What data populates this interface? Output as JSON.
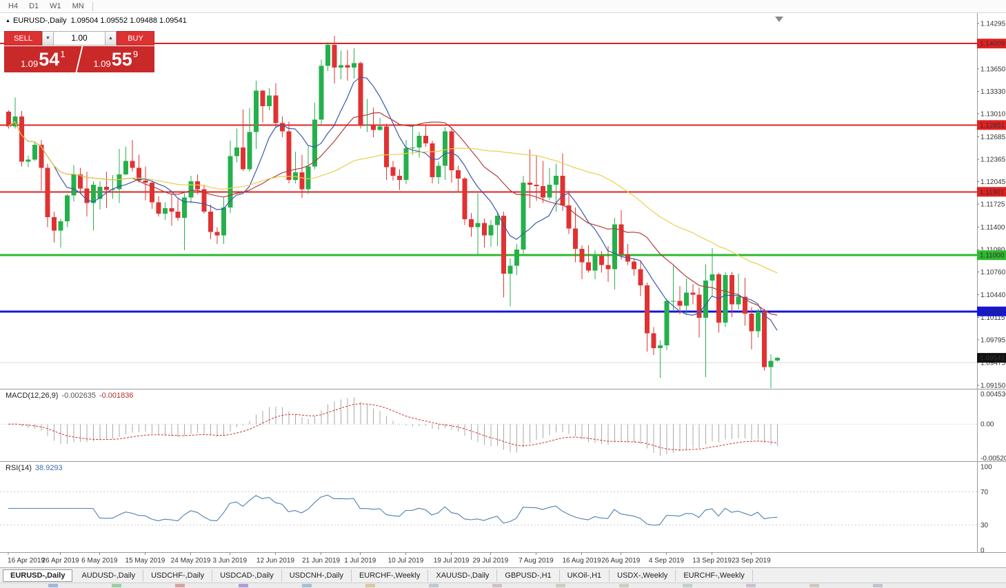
{
  "toolbar": {
    "timeframes": [
      "H4",
      "D1",
      "W1",
      "MN"
    ]
  },
  "header": {
    "marker": "▲",
    "title": "EURUSD-,Daily",
    "ohlc": "1.09504 1.09552 1.09488 1.09541"
  },
  "trade_panel": {
    "sell_label": "SELL",
    "buy_label": "BUY",
    "lot_value": "1.00",
    "icons": {
      "spinner_down": "▼",
      "spinner_up": "▲"
    },
    "bid": {
      "prefix": "1.09",
      "big": "54",
      "sup": "1"
    },
    "ask": {
      "prefix": "1.09",
      "big": "55",
      "sup": "9"
    }
  },
  "indicators": {
    "macd_title": "MACD(12,26,9)",
    "macd_main": "-0.002635",
    "macd_signal": "-0.001836",
    "macd_axis": [
      "0.004536",
      "0.00",
      "-0.00520"
    ],
    "rsi_title": "RSI(14)",
    "rsi_value": "38.9293",
    "rsi_axis": [
      "100",
      "70",
      "30",
      "0"
    ]
  },
  "price_axis": {
    "ticks": [
      "1.14295",
      "1.13650",
      "1.13330",
      "1.13010",
      "1.12685",
      "1.12365",
      "1.12045",
      "1.11725",
      "1.11400",
      "1.11080",
      "1.10760",
      "1.10440",
      "1.10115",
      "1.09795",
      "1.09475",
      "1.09150"
    ],
    "tags": [
      {
        "text": "1.14009",
        "price": 1.14009,
        "color": "#e02020"
      },
      {
        "text": "1.12851",
        "price": 1.12851,
        "color": "#e02020"
      },
      {
        "text": "1.11901",
        "price": 1.11901,
        "color": "#e02020"
      },
      {
        "text": "1.11000",
        "price": 1.11,
        "color": "#2eb82e"
      },
      {
        "text": "1.10201",
        "price": 1.10201,
        "color": "#1414dc"
      },
      {
        "text": "1.09541",
        "price": 1.09541,
        "color": "#111111"
      }
    ]
  },
  "date_axis": {
    "labels": [
      [
        0,
        "16 Apr 2019"
      ],
      [
        8,
        "26 Apr 2019"
      ],
      [
        14,
        "6 May 2019"
      ],
      [
        21,
        "15 May 2019"
      ],
      [
        28,
        "24 May 2019"
      ],
      [
        34,
        "3 Jun 2019"
      ],
      [
        41,
        "12 Jun 2019"
      ],
      [
        48,
        "21 Jun 2019"
      ],
      [
        54,
        "1 Jul 2019"
      ],
      [
        61,
        "10 Jul 2019"
      ],
      [
        68,
        "19 Jul 2019"
      ],
      [
        74,
        "29 Jul 2019"
      ],
      [
        81,
        "7 Aug 2019"
      ],
      [
        88,
        "16 Aug 2019"
      ],
      [
        94,
        "26 Aug 2019"
      ],
      [
        101,
        "4 Sep 2019"
      ],
      [
        108,
        "13 Sep 2019"
      ],
      [
        114,
        "23 Sep 2019"
      ]
    ]
  },
  "tabs": [
    "EURUSD-,Daily",
    "AUDUSD-,Daily",
    "USDCHF-,Daily",
    "USDCAD-,Daily",
    "USDCNH-,Daily",
    "EURCHF-,Weekly",
    "XAUUSD-,Daily",
    "GBPUSD-,H1",
    "UKOil-,H1",
    "USDX-,Weekly",
    "EURCHF-,Weekly"
  ],
  "bottom_strip": {
    "cells": [
      "#9db8d8",
      "#9ccf9c",
      "#d8a49c",
      "#b09cd8",
      "#9cc4d8",
      "#d8c89c",
      "#c0c8d0",
      "#d0c0c8",
      "#c8d0c0",
      "#d0ccc0",
      "#c0d0cc",
      "#ccc0d0",
      "#d0c8c0",
      "#c0c4d0"
    ]
  },
  "colors": {
    "bull": "#25b04c",
    "bear": "#e03232",
    "ma_fast": "#3a57a8",
    "ma_mid": "#b23b3b",
    "ma_slow": "#e8cf4a",
    "macd_hist": "#a8a8a8",
    "macd_signal": "#cc3030",
    "rsi_line": "#4d7fae",
    "level_red": "#e02020",
    "level_green": "#2eb82e",
    "level_blue": "#1414dc",
    "current_tag": "#111111"
  },
  "chart_data": {
    "type": "candlestick",
    "title": "EURUSD-,Daily",
    "current_bar": {
      "open": 1.09504,
      "high": 1.09552,
      "low": 1.09488,
      "close": 1.09541
    },
    "ylim": [
      1.0915,
      1.14295
    ],
    "candles": [
      [
        1.1304,
        1.1306,
        1.128,
        1.1283
      ],
      [
        1.1283,
        1.1324,
        1.128,
        1.1297
      ],
      [
        1.1297,
        1.1305,
        1.1226,
        1.1233
      ],
      [
        1.1233,
        1.1242,
        1.1225,
        1.1236
      ],
      [
        1.1236,
        1.1262,
        1.1234,
        1.1257
      ],
      [
        1.1257,
        1.1264,
        1.1192,
        1.1224
      ],
      [
        1.1224,
        1.123,
        1.114,
        1.1154
      ],
      [
        1.1154,
        1.1162,
        1.1118,
        1.1135
      ],
      [
        1.1135,
        1.1152,
        1.1111,
        1.1148
      ],
      [
        1.1148,
        1.1187,
        1.114,
        1.1185
      ],
      [
        1.1185,
        1.1228,
        1.1176,
        1.1215
      ],
      [
        1.1215,
        1.1224,
        1.1187,
        1.1195
      ],
      [
        1.1195,
        1.1219,
        1.1155,
        1.1174
      ],
      [
        1.1174,
        1.1205,
        1.1135,
        1.12
      ],
      [
        1.118,
        1.1205,
        1.1165,
        1.1197
      ],
      [
        1.1197,
        1.1219,
        1.1167,
        1.1193
      ],
      [
        1.1193,
        1.1214,
        1.118,
        1.1194
      ],
      [
        1.1194,
        1.1251,
        1.1174,
        1.1215
      ],
      [
        1.1215,
        1.1254,
        1.1214,
        1.1234
      ],
      [
        1.1234,
        1.1264,
        1.1219,
        1.1224
      ],
      [
        1.1224,
        1.1243,
        1.1203,
        1.1206
      ],
      [
        1.1206,
        1.1226,
        1.1178,
        1.1203
      ],
      [
        1.1203,
        1.1206,
        1.1166,
        1.1175
      ],
      [
        1.1175,
        1.1184,
        1.1155,
        1.1159
      ],
      [
        1.1159,
        1.1175,
        1.115,
        1.1167
      ],
      [
        1.1167,
        1.1188,
        1.1142,
        1.1162
      ],
      [
        1.1162,
        1.118,
        1.1149,
        1.1153
      ],
      [
        1.1153,
        1.1188,
        1.1107,
        1.1182
      ],
      [
        1.1182,
        1.1213,
        1.1174,
        1.1205
      ],
      [
        1.1205,
        1.1215,
        1.1187,
        1.1194
      ],
      [
        1.1194,
        1.12,
        1.1159,
        1.1162
      ],
      [
        1.1162,
        1.1172,
        1.1123,
        1.1133
      ],
      [
        1.1133,
        1.114,
        1.1116,
        1.1128
      ],
      [
        1.1128,
        1.1182,
        1.1116,
        1.1168
      ],
      [
        1.1168,
        1.1263,
        1.116,
        1.1241
      ],
      [
        1.1241,
        1.128,
        1.1232,
        1.1253
      ],
      [
        1.1253,
        1.1307,
        1.122,
        1.1222
      ],
      [
        1.1222,
        1.1309,
        1.1219,
        1.1275
      ],
      [
        1.1275,
        1.1348,
        1.1251,
        1.1334
      ],
      [
        1.1334,
        1.1335,
        1.1289,
        1.1312
      ],
      [
        1.1312,
        1.1338,
        1.1306,
        1.1327
      ],
      [
        1.1327,
        1.1344,
        1.1281,
        1.1288
      ],
      [
        1.1288,
        1.1297,
        1.1268,
        1.1276
      ],
      [
        1.1276,
        1.129,
        1.1202,
        1.1207
      ],
      [
        1.1207,
        1.1247,
        1.1202,
        1.1218
      ],
      [
        1.1218,
        1.1243,
        1.1181,
        1.1194
      ],
      [
        1.1194,
        1.1255,
        1.1187,
        1.1226
      ],
      [
        1.1226,
        1.1317,
        1.1222,
        1.1293
      ],
      [
        1.1293,
        1.1378,
        1.1285,
        1.1369
      ],
      [
        1.1369,
        1.1403,
        1.1362,
        1.1399
      ],
      [
        1.1399,
        1.1412,
        1.1344,
        1.1367
      ],
      [
        1.1367,
        1.1391,
        1.135,
        1.137
      ],
      [
        1.137,
        1.1392,
        1.1348,
        1.1367
      ],
      [
        1.1367,
        1.1394,
        1.1351,
        1.1373
      ],
      [
        1.1373,
        1.1375,
        1.128,
        1.1285
      ],
      [
        1.1285,
        1.1322,
        1.1275,
        1.1285
      ],
      [
        1.1285,
        1.131,
        1.1268,
        1.1278
      ],
      [
        1.1278,
        1.1295,
        1.1277,
        1.1283
      ],
      [
        1.1283,
        1.1287,
        1.1207,
        1.1225
      ],
      [
        1.1225,
        1.1234,
        1.1206,
        1.1213
      ],
      [
        1.1213,
        1.1222,
        1.1193,
        1.1207
      ],
      [
        1.1207,
        1.1264,
        1.1201,
        1.1252
      ],
      [
        1.1252,
        1.1285,
        1.1243,
        1.1253
      ],
      [
        1.1253,
        1.1275,
        1.1239,
        1.127
      ],
      [
        1.127,
        1.1284,
        1.1254,
        1.1259
      ],
      [
        1.1259,
        1.1263,
        1.1202,
        1.1211
      ],
      [
        1.1211,
        1.1233,
        1.1201,
        1.1227
      ],
      [
        1.1227,
        1.1282,
        1.1207,
        1.1276
      ],
      [
        1.1276,
        1.1282,
        1.1203,
        1.1221
      ],
      [
        1.1221,
        1.1227,
        1.1189,
        1.1209
      ],
      [
        1.1209,
        1.1211,
        1.1143,
        1.1151
      ],
      [
        1.1151,
        1.116,
        1.1126,
        1.114
      ],
      [
        1.114,
        1.1188,
        1.1101,
        1.1146
      ],
      [
        1.1146,
        1.1152,
        1.1111,
        1.1128
      ],
      [
        1.1128,
        1.115,
        1.1112,
        1.1143
      ],
      [
        1.1143,
        1.1162,
        1.1113,
        1.1156
      ],
      [
        1.1156,
        1.1162,
        1.104,
        1.1074
      ],
      [
        1.1074,
        1.1096,
        1.1027,
        1.1085
      ],
      [
        1.1085,
        1.1116,
        1.1072,
        1.1108
      ],
      [
        1.1108,
        1.1213,
        1.1102,
        1.1203
      ],
      [
        1.1203,
        1.125,
        1.1167,
        1.12
      ],
      [
        1.12,
        1.1242,
        1.1177,
        1.1198
      ],
      [
        1.1198,
        1.1234,
        1.1174,
        1.1182
      ],
      [
        1.1182,
        1.1224,
        1.1178,
        1.12
      ],
      [
        1.12,
        1.123,
        1.1162,
        1.1213
      ],
      [
        1.1213,
        1.1245,
        1.1163,
        1.1171
      ],
      [
        1.1171,
        1.1192,
        1.113,
        1.1138
      ],
      [
        1.1138,
        1.1168,
        1.109,
        1.1109
      ],
      [
        1.1109,
        1.1114,
        1.1066,
        1.109
      ],
      [
        1.109,
        1.1114,
        1.1075,
        1.1078
      ],
      [
        1.1078,
        1.1107,
        1.1066,
        1.1099
      ],
      [
        1.1099,
        1.1106,
        1.1075,
        1.1086
      ],
      [
        1.1086,
        1.1113,
        1.1062,
        1.108
      ],
      [
        1.108,
        1.1153,
        1.1051,
        1.1144
      ],
      [
        1.1144,
        1.1164,
        1.1094,
        1.1101
      ],
      [
        1.1101,
        1.1116,
        1.1086,
        1.1091
      ],
      [
        1.1091,
        1.1095,
        1.1071,
        1.108
      ],
      [
        1.108,
        1.1093,
        1.1042,
        1.1057
      ],
      [
        1.1057,
        1.1061,
        1.0963,
        1.0989
      ],
      [
        1.0989,
        1.0998,
        1.0958,
        1.0968
      ],
      [
        1.0968,
        1.0979,
        1.0926,
        1.0972
      ],
      [
        1.0972,
        1.1038,
        1.0965,
        1.1035
      ],
      [
        1.1035,
        1.1085,
        1.1022,
        1.1035
      ],
      [
        1.1035,
        1.1056,
        1.1016,
        1.1028
      ],
      [
        1.1028,
        1.1067,
        1.1015,
        1.1047
      ],
      [
        1.1047,
        1.1059,
        1.103,
        1.1044
      ],
      [
        1.1044,
        1.1054,
        1.0983,
        1.1011
      ],
      [
        1.1011,
        1.1087,
        1.0927,
        1.1064
      ],
      [
        1.1064,
        1.111,
        1.1043,
        1.1073
      ],
      [
        1.1073,
        1.1075,
        1.099,
        1.1004
      ],
      [
        1.1004,
        1.1076,
        1.0998,
        1.1072
      ],
      [
        1.1072,
        1.1076,
        1.1012,
        1.103
      ],
      [
        1.103,
        1.1074,
        1.1023,
        1.1041
      ],
      [
        1.1041,
        1.1068,
        1.1,
        1.1017
      ],
      [
        1.1017,
        1.1026,
        1.0966,
        1.0992
      ],
      [
        1.0992,
        1.1024,
        1.0983,
        1.102
      ],
      [
        1.102,
        1.1024,
        1.0936,
        1.0941
      ],
      [
        1.0941,
        1.0959,
        1.0905,
        1.095
      ],
      [
        1.09504,
        1.09552,
        1.09488,
        1.09541
      ]
    ],
    "moving_averages": [
      {
        "name": "fast",
        "period": 8,
        "color": "#3a57a8"
      },
      {
        "name": "mid",
        "period": 20,
        "color": "#b23b3b"
      },
      {
        "name": "slow",
        "period": 45,
        "color": "#e8cf4a"
      }
    ],
    "hlines": [
      {
        "price": 1.14009,
        "color": "#e02020",
        "width": 2
      },
      {
        "price": 1.12851,
        "color": "#e02020",
        "width": 2
      },
      {
        "price": 1.11901,
        "color": "#e02020",
        "width": 2
      },
      {
        "price": 1.11,
        "color": "#2eb82e",
        "width": 3
      },
      {
        "price": 1.10201,
        "color": "#1414dc",
        "width": 3
      },
      {
        "price": 1.09475,
        "color": "#dcdcdc",
        "width": 1
      }
    ],
    "current_price": 1.09541,
    "macd": {
      "params": [
        12,
        26,
        9
      ],
      "scale_max": 0.004536,
      "scale_min": -0.0052,
      "last_main": -0.002635,
      "last_signal": -0.001836
    },
    "rsi": {
      "period": 14,
      "levels": [
        70,
        30
      ],
      "last_value": 38.9293
    }
  }
}
